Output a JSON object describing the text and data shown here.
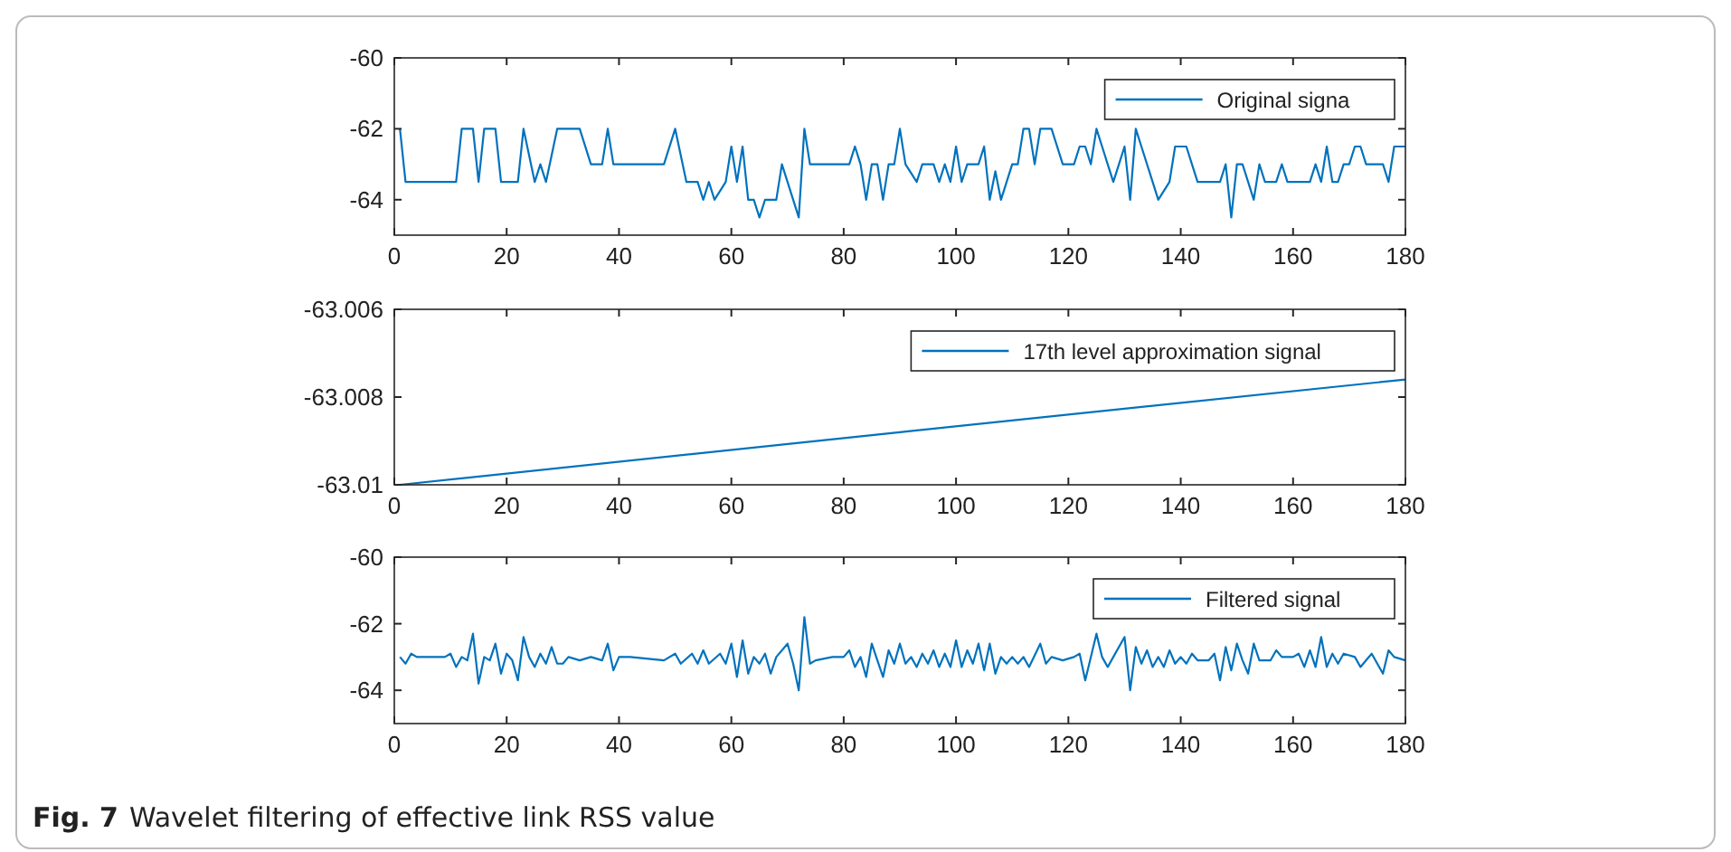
{
  "chart_data": [
    {
      "type": "line",
      "xlim": [
        0,
        180
      ],
      "xticks": [
        0,
        20,
        40,
        60,
        80,
        100,
        120,
        140,
        160,
        180
      ],
      "ylim": [
        -65,
        -60
      ],
      "yticks": [
        -60,
        -62,
        -64
      ],
      "legend": "top right",
      "series": [
        {
          "name": "Original signa",
          "color": "#0072bd",
          "x": [
            1,
            2,
            11,
            12,
            14,
            15,
            16,
            18,
            19,
            22,
            23,
            25,
            26,
            27,
            29,
            33,
            35,
            37,
            38,
            39,
            48,
            50,
            52,
            54,
            55,
            56,
            57,
            59,
            60,
            61,
            62,
            63,
            64,
            65,
            66,
            68,
            69,
            70,
            72,
            73,
            74,
            81,
            82,
            83,
            84,
            85,
            86,
            87,
            88,
            89,
            90,
            91,
            93,
            94,
            96,
            97,
            98,
            99,
            100,
            101,
            102,
            104,
            105,
            106,
            107,
            108,
            110,
            111,
            112,
            113,
            114,
            115,
            117,
            119,
            121,
            122,
            123,
            124,
            125,
            126,
            127,
            128,
            129,
            130,
            131,
            132,
            133,
            135,
            136,
            138,
            139,
            141,
            142,
            143,
            147,
            148,
            149,
            150,
            151,
            152,
            153,
            154,
            155,
            157,
            158,
            159,
            163,
            164,
            165,
            166,
            167,
            168,
            169,
            170,
            171,
            172,
            173,
            176,
            177,
            178,
            180
          ],
          "values": [
            -62,
            -63.5,
            -63.5,
            -62,
            -62,
            -63.5,
            -62,
            -62,
            -63.5,
            -63.5,
            -62,
            -63.5,
            -63,
            -63.5,
            -62,
            -62,
            -63,
            -63,
            -62,
            -63,
            -63,
            -62,
            -63.5,
            -63.5,
            -64,
            -63.5,
            -64,
            -63.5,
            -62.5,
            -63.5,
            -62.5,
            -64,
            -64,
            -64.5,
            -64,
            -64,
            -63,
            -63.5,
            -64.5,
            -62,
            -63,
            -63,
            -62.5,
            -63,
            -64,
            -63,
            -63,
            -64,
            -63,
            -63,
            -62,
            -63,
            -63.5,
            -63,
            -63,
            -63.5,
            -63,
            -63.5,
            -62.5,
            -63.5,
            -63,
            -63,
            -62.5,
            -64,
            -63.2,
            -64,
            -63,
            -63,
            -62,
            -62,
            -63,
            -62,
            -62,
            -63,
            -63,
            -62.5,
            -62.5,
            -63,
            -62,
            -62.5,
            -63,
            -63.5,
            -63,
            -62.5,
            -64,
            -62,
            -62.5,
            -63.5,
            -64,
            -63.5,
            -62.5,
            -62.5,
            -63,
            -63.5,
            -63.5,
            -63,
            -64.5,
            -63,
            -63,
            -63.5,
            -64,
            -63,
            -63.5,
            -63.5,
            -63,
            -63.5,
            -63.5,
            -63,
            -63.5,
            -62.5,
            -63.5,
            -63.5,
            -63,
            -63,
            -62.5,
            -62.5,
            -63,
            -63,
            -63.5,
            -62.5,
            -62.5
          ]
        }
      ]
    },
    {
      "type": "line",
      "xlim": [
        0,
        180
      ],
      "xticks": [
        0,
        20,
        40,
        60,
        80,
        100,
        120,
        140,
        160,
        180
      ],
      "ylim": [
        -63.01,
        -63.006
      ],
      "yticks": [
        -63.006,
        -63.008,
        -63.01
      ],
      "legend": "top right",
      "series": [
        {
          "name": "17th level approximation signal",
          "color": "#0072bd",
          "x": [
            1,
            90,
            180
          ],
          "values": [
            -63.01,
            -63.0088,
            -63.0076
          ]
        }
      ]
    },
    {
      "type": "line",
      "xlim": [
        0,
        180
      ],
      "xticks": [
        0,
        20,
        40,
        60,
        80,
        100,
        120,
        140,
        160,
        180
      ],
      "ylim": [
        -65,
        -60
      ],
      "yticks": [
        -60,
        -62,
        -64
      ],
      "legend": "top right",
      "annotations": [
        "Fig. 7",
        "Wavelet filtering of effective link RSS value"
      ],
      "series": [
        {
          "name": "Filtered signal",
          "color": "#0072bd",
          "x": [
            1,
            2,
            3,
            4,
            9,
            10,
            11,
            12,
            13,
            14,
            15,
            16,
            17,
            18,
            19,
            20,
            21,
            22,
            23,
            24,
            25,
            26,
            27,
            28,
            29,
            30,
            31,
            33,
            35,
            37,
            38,
            39,
            40,
            42,
            48,
            50,
            51,
            53,
            54,
            55,
            56,
            58,
            59,
            60,
            61,
            62,
            63,
            64,
            65,
            66,
            67,
            68,
            70,
            71,
            72,
            73,
            74,
            75,
            78,
            80,
            81,
            82,
            83,
            84,
            85,
            86,
            87,
            88,
            89,
            90,
            91,
            92,
            93,
            94,
            95,
            96,
            97,
            98,
            99,
            100,
            101,
            102,
            103,
            104,
            105,
            106,
            107,
            108,
            109,
            110,
            111,
            112,
            113,
            115,
            116,
            117,
            119,
            121,
            122,
            123,
            124,
            125,
            126,
            127,
            128,
            130,
            131,
            132,
            133,
            134,
            135,
            136,
            137,
            138,
            139,
            140,
            141,
            142,
            143,
            145,
            146,
            147,
            148,
            149,
            150,
            151,
            152,
            153,
            154,
            156,
            157,
            158,
            160,
            161,
            162,
            163,
            164,
            165,
            166,
            167,
            168,
            169,
            171,
            172,
            173,
            174,
            176,
            177,
            178,
            180
          ],
          "values": [
            -63,
            -63.2,
            -62.9,
            -63,
            -63,
            -62.9,
            -63.3,
            -63,
            -63.1,
            -62.3,
            -63.8,
            -63,
            -63.1,
            -62.6,
            -63.5,
            -62.9,
            -63.1,
            -63.7,
            -62.4,
            -63,
            -63.3,
            -62.9,
            -63.2,
            -62.7,
            -63.2,
            -63.2,
            -63,
            -63.1,
            -63,
            -63.1,
            -62.6,
            -63.4,
            -63,
            -63,
            -63.1,
            -62.9,
            -63.2,
            -62.9,
            -63.2,
            -62.8,
            -63.2,
            -62.9,
            -63.2,
            -62.6,
            -63.6,
            -62.5,
            -63.5,
            -63,
            -63.2,
            -62.9,
            -63.5,
            -63,
            -62.6,
            -63.2,
            -64,
            -61.8,
            -63.2,
            -63.1,
            -63,
            -63,
            -62.8,
            -63.3,
            -63,
            -63.6,
            -62.6,
            -63.1,
            -63.6,
            -62.8,
            -63.2,
            -62.6,
            -63.2,
            -63,
            -63.3,
            -62.9,
            -63.2,
            -62.8,
            -63.3,
            -62.9,
            -63.3,
            -62.5,
            -63.3,
            -62.8,
            -63.2,
            -62.6,
            -63.4,
            -62.6,
            -63.5,
            -63,
            -63.2,
            -63,
            -63.2,
            -63,
            -63.3,
            -62.6,
            -63.2,
            -63,
            -63.1,
            -63,
            -62.9,
            -63.7,
            -63,
            -62.3,
            -63,
            -63.3,
            -63,
            -62.4,
            -64,
            -62.7,
            -63.2,
            -62.8,
            -63.3,
            -63,
            -63.3,
            -62.8,
            -63.2,
            -63,
            -63.2,
            -62.9,
            -63.1,
            -63.1,
            -62.9,
            -63.7,
            -62.7,
            -63.4,
            -62.6,
            -63.1,
            -63.5,
            -62.6,
            -63.1,
            -63.1,
            -62.8,
            -63,
            -63,
            -62.9,
            -63.3,
            -62.8,
            -63.3,
            -62.4,
            -63.3,
            -62.9,
            -63.2,
            -62.9,
            -63,
            -63.3,
            -63.1,
            -62.9,
            -63.5,
            -62.8,
            -63,
            -63.1
          ]
        }
      ]
    }
  ]
}
